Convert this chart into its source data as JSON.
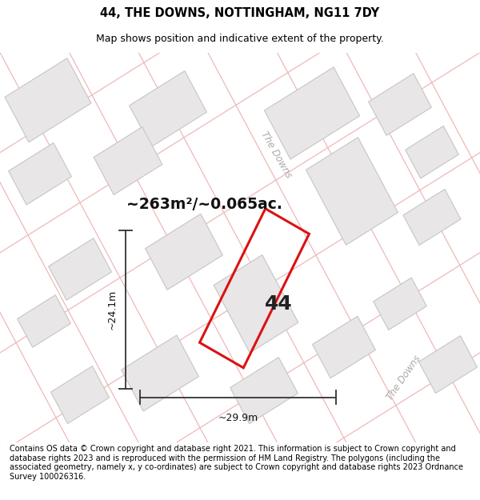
{
  "title": "44, THE DOWNS, NOTTINGHAM, NG11 7DY",
  "subtitle": "Map shows position and indicative extent of the property.",
  "footer": "Contains OS data © Crown copyright and database right 2021. This information is subject to Crown copyright and database rights 2023 and is reproduced with the permission of HM Land Registry. The polygons (including the associated geometry, namely x, y co-ordinates) are subject to Crown copyright and database rights 2023 Ordnance Survey 100026316.",
  "area_text": "~263m²/~0.065ac.",
  "number_label": "44",
  "width_label": "~29.9m",
  "height_label": "~24.1m",
  "road_label_1": "The Downs",
  "road_label_2": "The Downs",
  "map_bg": "#f8f7f7",
  "building_fill": "#e8e6e6",
  "building_edge": "#c8c5c5",
  "road_line_color": "#f0b8b8",
  "highlight_color": "#dd1111",
  "title_fontsize": 10.5,
  "subtitle_fontsize": 9,
  "footer_fontsize": 7.0
}
